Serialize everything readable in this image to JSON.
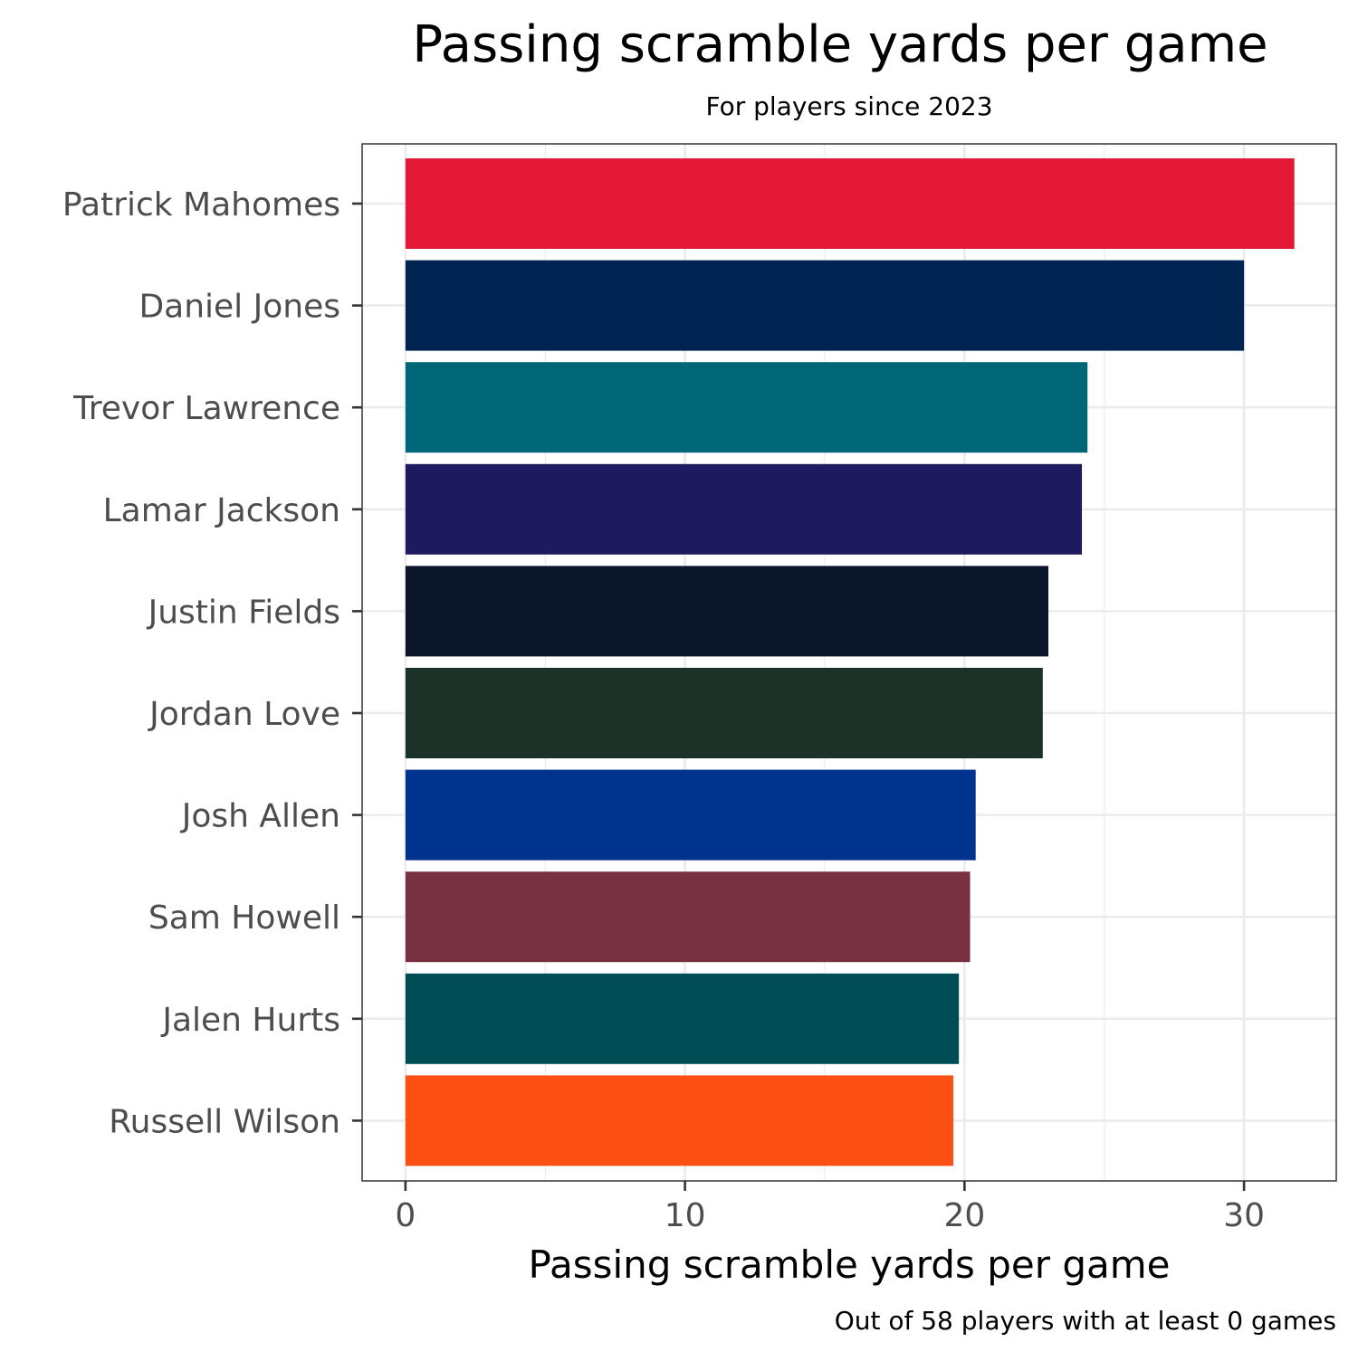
{
  "chart_data": {
    "type": "bar",
    "orientation": "horizontal",
    "title": "Passing scramble yards per game",
    "subtitle": "For players since 2023",
    "xlabel": "Passing scramble yards per game",
    "ylabel": "",
    "caption": "Out of 58 players with at least 0 games",
    "xlim": [
      -1.55,
      33.3
    ],
    "xticks": [
      0,
      10,
      20,
      30
    ],
    "grid": true,
    "legend": "none",
    "categories": [
      "Patrick Mahomes",
      "Daniel Jones",
      "Trevor Lawrence",
      "Lamar Jackson",
      "Justin Fields",
      "Jordan Love",
      "Josh Allen",
      "Sam Howell",
      "Jalen Hurts",
      "Russell Wilson"
    ],
    "values": [
      31.8,
      30.0,
      24.4,
      24.2,
      23.0,
      22.8,
      20.4,
      20.2,
      19.8,
      19.6
    ],
    "colors": [
      "#E31837",
      "#002452",
      "#006778",
      "#1D1A5F",
      "#0B162A",
      "#1C3127",
      "#00338D",
      "#773141",
      "#004C54",
      "#FB4F14"
    ]
  }
}
